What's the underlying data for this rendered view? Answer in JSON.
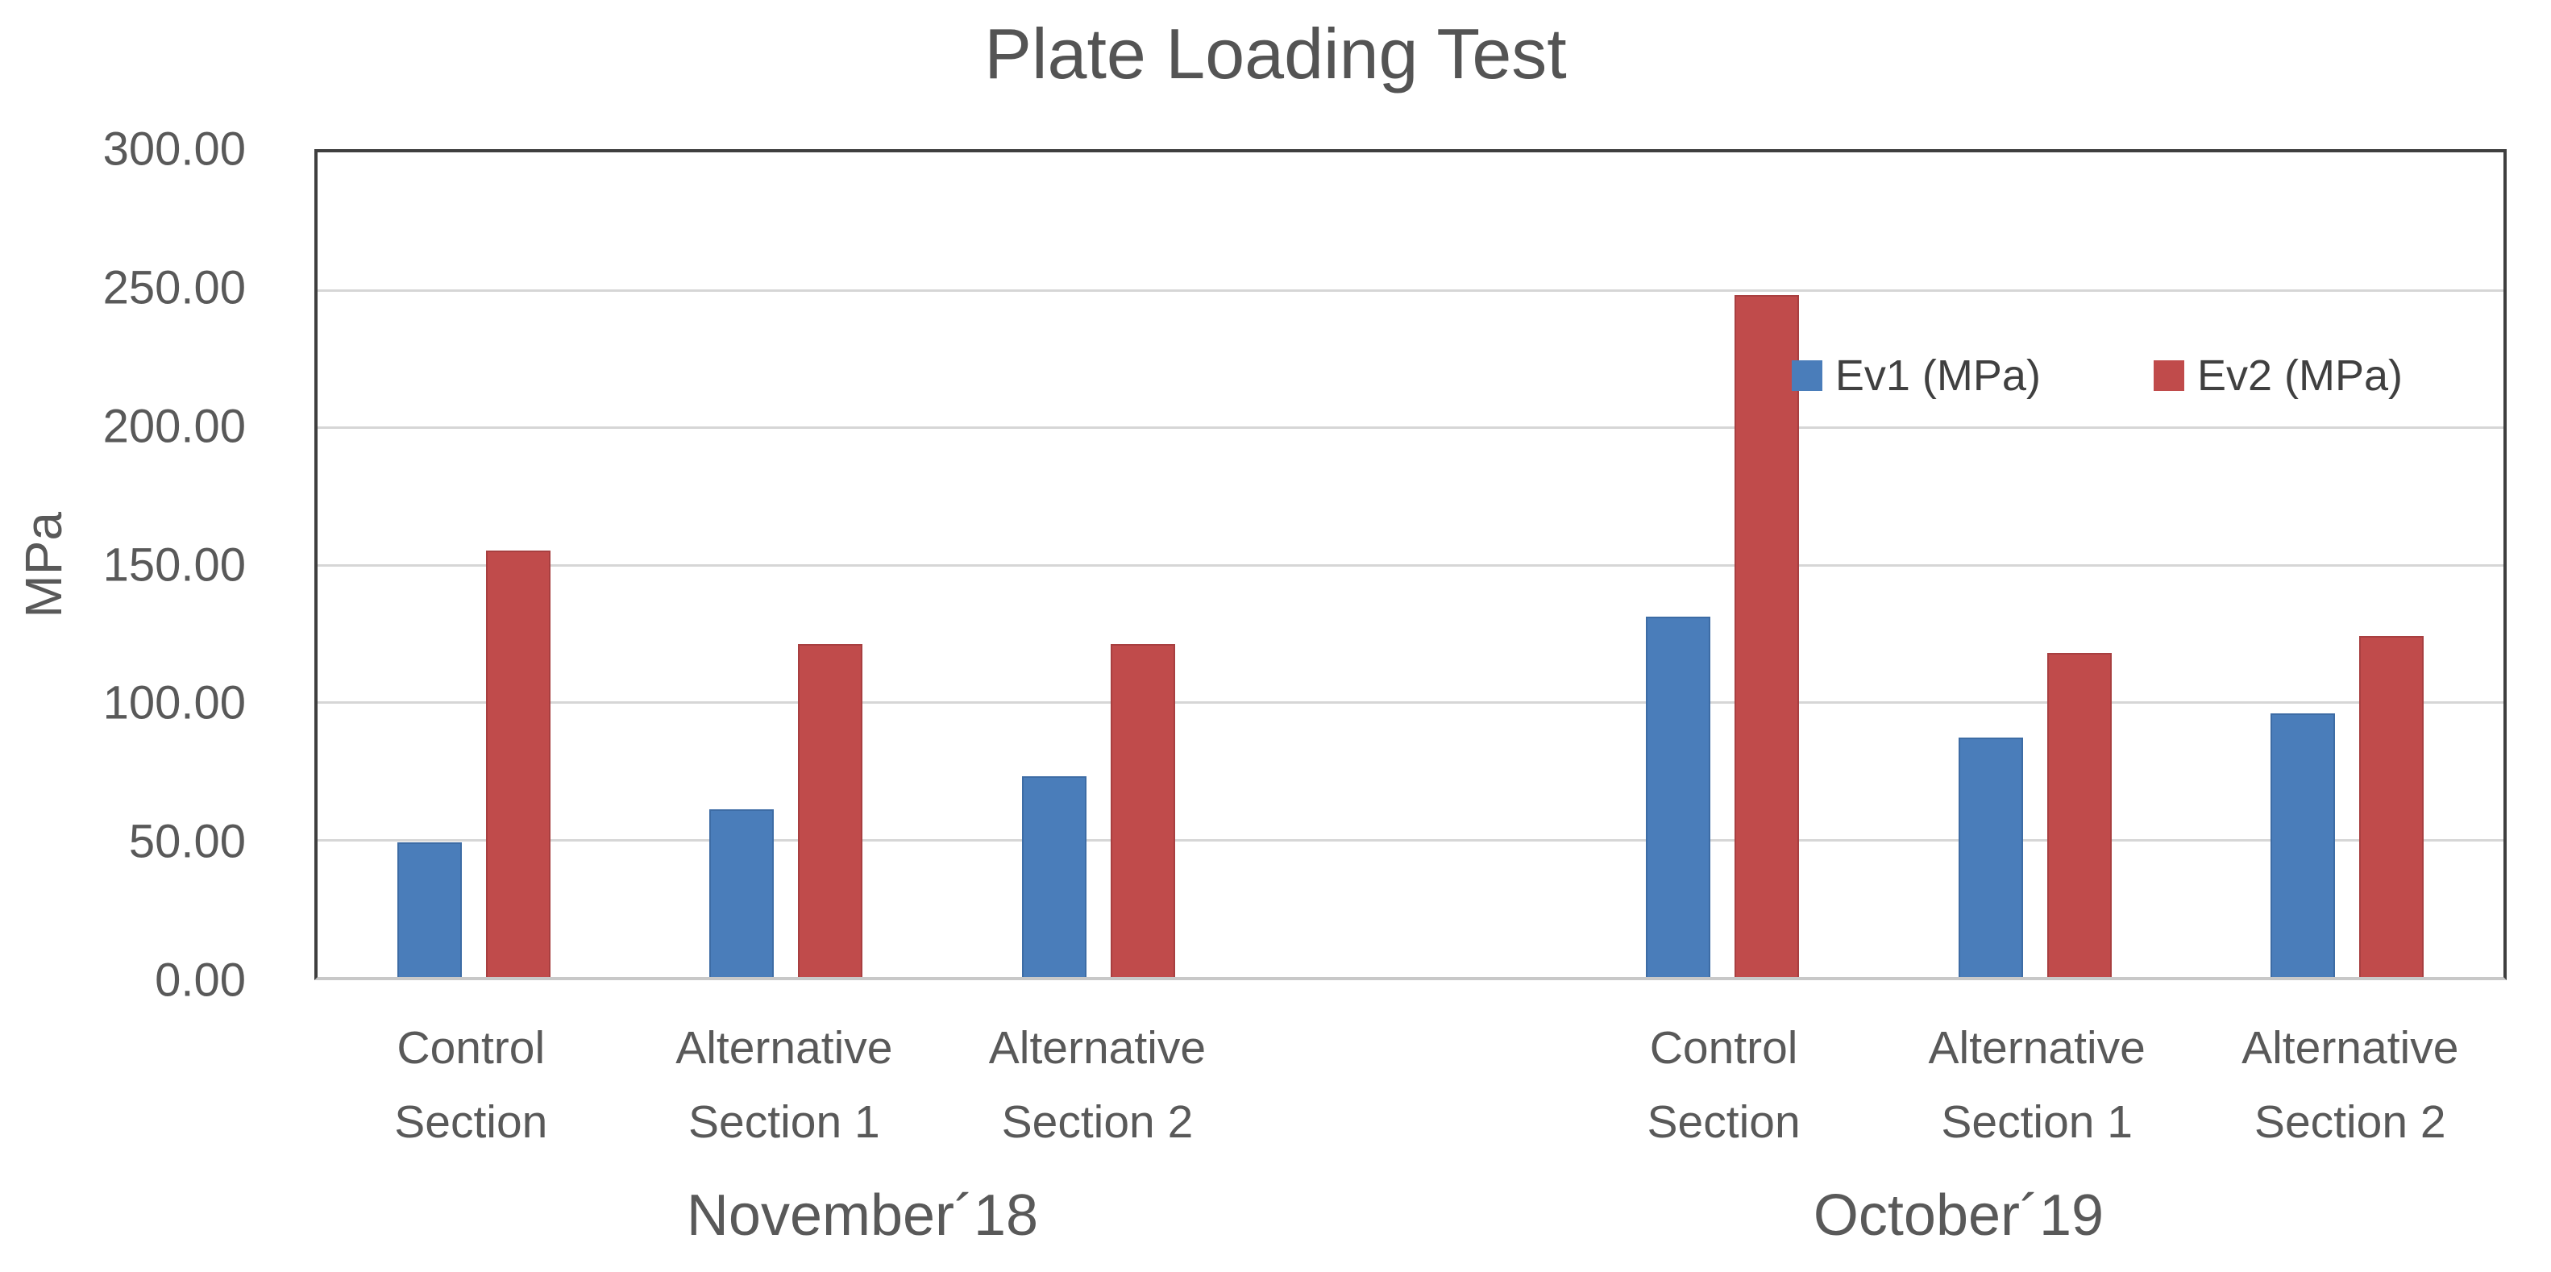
{
  "chart_data": {
    "type": "bar",
    "title": "Plate Loading Test",
    "ylabel": "MPa",
    "ylim": [
      0,
      300
    ],
    "ytick_step": 50,
    "ytick_labels": [
      "300.00",
      "250.00",
      "200.00",
      "150.00",
      "100.00",
      "50.00",
      "0.00"
    ],
    "grid": "horizontal",
    "legend_position": "top-right-inside",
    "group_labels": [
      "November´18",
      "October´19"
    ],
    "categories": [
      "Control Section",
      "Alternative Section 1",
      "Alternative Section 2",
      "Control Section",
      "Alternative Section 1",
      "Alternative Section 2"
    ],
    "category_label_lines": [
      [
        "Control",
        "Section"
      ],
      [
        "Alternative",
        "Section 1"
      ],
      [
        "Alternative",
        "Section 2"
      ],
      [
        "Control",
        "Section"
      ],
      [
        "Alternative",
        "Section 1"
      ],
      [
        "Alternative",
        "Section 2"
      ]
    ],
    "series": [
      {
        "name": "Ev1 (MPa)",
        "color": "#4A7DBA",
        "border_color": "#3D6CA5",
        "values": [
          49,
          61,
          73,
          131,
          87,
          96
        ]
      },
      {
        "name": "Ev2 (MPa)",
        "color": "#C04B4B",
        "border_color": "#A83F40",
        "values": [
          155,
          121,
          121,
          248,
          118,
          124
        ]
      }
    ],
    "colors": {
      "text": "#595959",
      "title_text": "#545454",
      "gridline": "#D6D6D6",
      "plot_border": "#3F3F3F",
      "baseline": "#C8C8C8",
      "background": "#FFFFFF"
    }
  }
}
